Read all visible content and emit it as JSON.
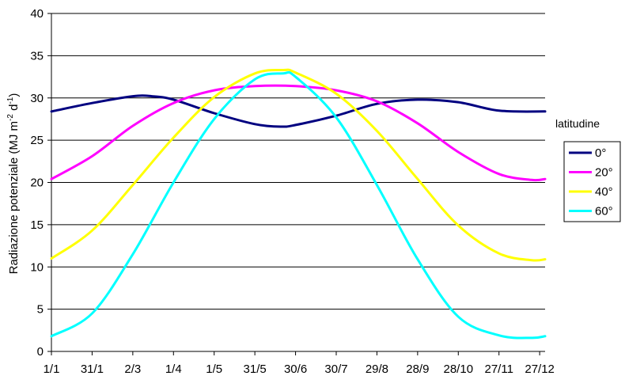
{
  "chart_data": {
    "type": "line",
    "title": "",
    "xlabel": "",
    "ylabel_parts": [
      "Radiazione potenziale (MJ m",
      "-2",
      " d",
      "-1",
      ")"
    ],
    "ylim": [
      0,
      40
    ],
    "yticks": [
      0,
      5,
      10,
      15,
      20,
      25,
      30,
      35,
      40
    ],
    "xlim": [
      1,
      365
    ],
    "x_tick_labels": [
      "1/1",
      "31/1",
      "2/3",
      "1/4",
      "1/5",
      "31/5",
      "30/6",
      "30/7",
      "29/8",
      "28/9",
      "28/10",
      "27/11",
      "27/12"
    ],
    "x_tick_days": [
      1,
      31,
      61,
      91,
      121,
      151,
      181,
      211,
      241,
      271,
      301,
      331,
      361
    ],
    "grid": "horizontal",
    "legend_title": "latitudine",
    "legend_position": "right",
    "series": [
      {
        "name": "0°",
        "color": "#000080",
        "x": [
          1,
          31,
          61,
          75,
          91,
          121,
          151,
          170,
          181,
          211,
          241,
          271,
          301,
          331,
          365
        ],
        "y": [
          28.4,
          29.4,
          30.2,
          30.2,
          29.8,
          28.2,
          26.9,
          26.6,
          26.8,
          27.9,
          29.3,
          29.8,
          29.5,
          28.5,
          28.4
        ]
      },
      {
        "name": "20°",
        "color": "#FF00FF",
        "x": [
          1,
          31,
          61,
          91,
          121,
          151,
          181,
          211,
          241,
          271,
          301,
          331,
          355,
          365
        ],
        "y": [
          20.4,
          23.1,
          26.7,
          29.4,
          30.9,
          31.4,
          31.4,
          30.9,
          29.6,
          27.0,
          23.6,
          21.0,
          20.3,
          20.4
        ]
      },
      {
        "name": "40°",
        "color": "#FFFF00",
        "x": [
          1,
          31,
          61,
          91,
          121,
          151,
          172,
          181,
          211,
          241,
          271,
          301,
          331,
          355,
          365
        ],
        "y": [
          11.0,
          14.3,
          19.7,
          25.3,
          30.1,
          32.9,
          33.3,
          33.0,
          30.5,
          26.1,
          20.4,
          14.9,
          11.6,
          10.8,
          10.9
        ]
      },
      {
        "name": "60°",
        "color": "#00FFFF",
        "x": [
          1,
          31,
          61,
          91,
          121,
          151,
          172,
          181,
          211,
          241,
          271,
          301,
          331,
          355,
          365
        ],
        "y": [
          1.8,
          4.5,
          11.5,
          20.0,
          27.5,
          32.2,
          32.9,
          32.5,
          27.7,
          19.7,
          10.9,
          4.1,
          1.9,
          1.6,
          1.8
        ]
      }
    ]
  }
}
